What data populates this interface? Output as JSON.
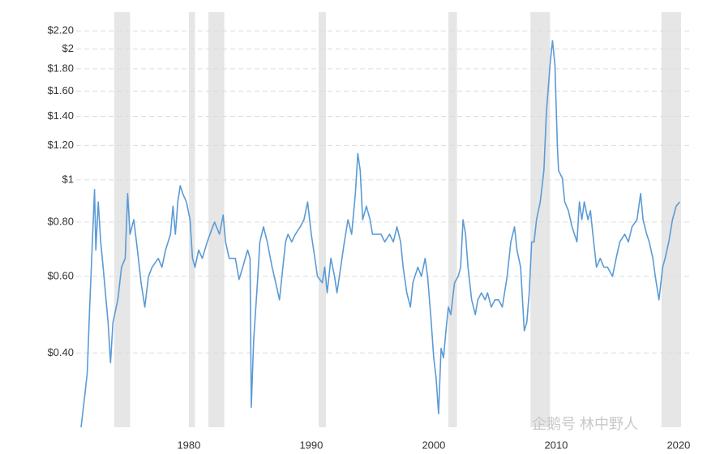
{
  "chart_data": {
    "type": "line",
    "log_scale_y": true,
    "grid": true,
    "xlim": [
      1970.8,
      2021.0
    ],
    "xticks": [
      1980,
      1990,
      2000,
      2010,
      2020
    ],
    "ylim": [
      0.27,
      2.43
    ],
    "yticks": [
      {
        "value": 0.4,
        "label": "$0.40"
      },
      {
        "value": 0.6,
        "label": "$0.60"
      },
      {
        "value": 0.8,
        "label": "$0.80"
      },
      {
        "value": 1,
        "label": "$1"
      },
      {
        "value": 1.2,
        "label": "$1.20"
      },
      {
        "value": 1.4,
        "label": "$1.40"
      },
      {
        "value": 1.6,
        "label": "$1.60"
      },
      {
        "value": 1.8,
        "label": "$1.80"
      },
      {
        "value": 2,
        "label": "$2"
      },
      {
        "value": 2.2,
        "label": "$2.20"
      }
    ],
    "band_color": "#e6e6e6",
    "bands": [
      [
        1973.9,
        1975.2
      ],
      [
        1980.0,
        1980.5
      ],
      [
        1981.6,
        1982.9
      ],
      [
        1990.6,
        1991.2
      ],
      [
        2001.2,
        2001.9
      ],
      [
        2007.9,
        2009.5
      ],
      [
        2018.6,
        2020.2
      ]
    ],
    "watermark": "企鹅号 林中野人",
    "series": [
      {
        "color": "#5b9bd5",
        "x": [
          1971.2,
          1971.5,
          1971.7,
          1971.9,
          1972.3,
          1972.4,
          1972.6,
          1972.8,
          1973.0,
          1973.4,
          1973.6,
          1973.8,
          1974.2,
          1974.5,
          1974.8,
          1975.0,
          1975.2,
          1975.5,
          1975.8,
          1976.1,
          1976.4,
          1976.7,
          1977.0,
          1977.5,
          1977.8,
          1978.1,
          1978.5,
          1978.7,
          1978.9,
          1979.1,
          1979.3,
          1979.5,
          1979.8,
          1980.1,
          1980.3,
          1980.5,
          1980.8,
          1981.1,
          1981.5,
          1981.8,
          1982.1,
          1982.5,
          1982.8,
          1983.0,
          1983.3,
          1983.8,
          1984.1,
          1984.4,
          1984.8,
          1985.0,
          1985.1,
          1985.3,
          1985.6,
          1985.8,
          1986.1,
          1986.4,
          1986.8,
          1987.1,
          1987.4,
          1987.6,
          1987.9,
          1988.1,
          1988.4,
          1988.7,
          1989.1,
          1989.4,
          1989.7,
          1990.0,
          1990.3,
          1990.5,
          1990.9,
          1991.1,
          1991.3,
          1991.6,
          1991.9,
          1992.1,
          1992.4,
          1992.7,
          1993.0,
          1993.3,
          1993.6,
          1993.8,
          1994.0,
          1994.2,
          1994.5,
          1994.8,
          1995.0,
          1995.4,
          1995.7,
          1996.0,
          1996.4,
          1996.7,
          1997.0,
          1997.3,
          1997.5,
          1997.8,
          1998.1,
          1998.3,
          1998.7,
          1999.0,
          1999.3,
          1999.5,
          1999.8,
          2000.0,
          2000.2,
          2000.4,
          2000.6,
          2000.8,
          2001.0,
          2001.2,
          2001.4,
          2001.7,
          2002.0,
          2002.2,
          2002.4,
          2002.6,
          2002.8,
          2003.1,
          2003.4,
          2003.6,
          2003.9,
          2004.2,
          2004.4,
          2004.7,
          2005.0,
          2005.3,
          2005.6,
          2006.0,
          2006.3,
          2006.6,
          2006.8,
          2007.1,
          2007.4,
          2007.6,
          2007.8,
          2008.0,
          2008.2,
          2008.4,
          2008.7,
          2009.0,
          2009.2,
          2009.5,
          2009.7,
          2009.9,
          2010.1,
          2010.2,
          2010.5,
          2010.7,
          2011.0,
          2011.3,
          2011.7,
          2011.9,
          2012.1,
          2012.3,
          2012.6,
          2012.8,
          2013.0,
          2013.3,
          2013.6,
          2013.9,
          2014.2,
          2014.6,
          2014.9,
          2015.2,
          2015.6,
          2015.9,
          2016.2,
          2016.6,
          2016.9,
          2017.1,
          2017.4,
          2017.6,
          2017.9,
          2018.1,
          2018.4,
          2018.7,
          2018.9,
          2019.2,
          2019.5,
          2019.8,
          2020.1
        ],
        "values": [
          0.27,
          0.32,
          0.36,
          0.51,
          0.95,
          0.69,
          0.89,
          0.72,
          0.63,
          0.47,
          0.38,
          0.47,
          0.53,
          0.63,
          0.66,
          0.93,
          0.75,
          0.81,
          0.69,
          0.58,
          0.51,
          0.6,
          0.63,
          0.66,
          0.63,
          0.69,
          0.75,
          0.87,
          0.75,
          0.89,
          0.97,
          0.93,
          0.89,
          0.81,
          0.66,
          0.63,
          0.69,
          0.66,
          0.72,
          0.76,
          0.8,
          0.75,
          0.83,
          0.72,
          0.66,
          0.66,
          0.59,
          0.63,
          0.69,
          0.66,
          0.3,
          0.43,
          0.58,
          0.72,
          0.78,
          0.72,
          0.63,
          0.58,
          0.53,
          0.6,
          0.72,
          0.75,
          0.72,
          0.75,
          0.78,
          0.81,
          0.89,
          0.75,
          0.66,
          0.6,
          0.58,
          0.63,
          0.55,
          0.66,
          0.6,
          0.55,
          0.63,
          0.72,
          0.81,
          0.75,
          0.93,
          1.15,
          1.05,
          0.81,
          0.87,
          0.81,
          0.75,
          0.75,
          0.75,
          0.72,
          0.75,
          0.72,
          0.78,
          0.72,
          0.63,
          0.55,
          0.51,
          0.58,
          0.63,
          0.6,
          0.66,
          0.6,
          0.47,
          0.39,
          0.35,
          0.29,
          0.41,
          0.39,
          0.45,
          0.51,
          0.49,
          0.58,
          0.6,
          0.63,
          0.81,
          0.75,
          0.63,
          0.53,
          0.49,
          0.53,
          0.55,
          0.53,
          0.55,
          0.51,
          0.53,
          0.53,
          0.51,
          0.6,
          0.72,
          0.78,
          0.69,
          0.63,
          0.45,
          0.47,
          0.55,
          0.72,
          0.72,
          0.81,
          0.89,
          1.05,
          1.42,
          1.84,
          2.09,
          1.84,
          1.2,
          1.05,
          1.01,
          0.89,
          0.85,
          0.78,
          0.72,
          0.89,
          0.81,
          0.89,
          0.81,
          0.85,
          0.75,
          0.63,
          0.66,
          0.63,
          0.63,
          0.6,
          0.66,
          0.72,
          0.75,
          0.72,
          0.78,
          0.81,
          0.93,
          0.81,
          0.75,
          0.72,
          0.66,
          0.6,
          0.53,
          0.63,
          0.66,
          0.72,
          0.81,
          0.87,
          0.89
        ]
      }
    ]
  }
}
